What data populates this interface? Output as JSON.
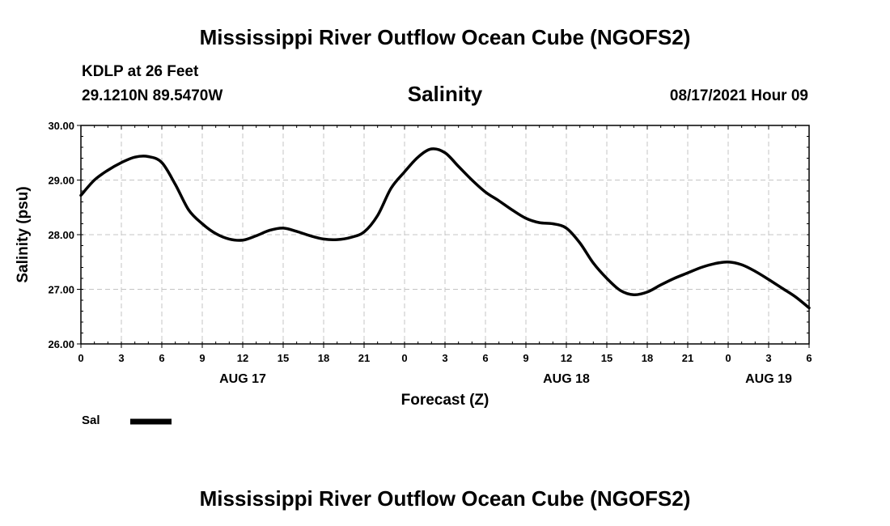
{
  "header": {
    "title": "Mississippi River Outflow Ocean Cube (NGOFS2)",
    "station": "KDLP at 26 Feet",
    "coordinates": "29.1210N  89.5470W",
    "date": "08/17/2021 Hour 09"
  },
  "footer": {
    "title": "Mississippi River Outflow Ocean Cube (NGOFS2)"
  },
  "legend": {
    "label": "Sal",
    "color": "#000000"
  },
  "chart_data": {
    "type": "line",
    "title": "Salinity",
    "xlabel": "Forecast (Z)",
    "ylabel": "Salinity (psu)",
    "xlim": [
      0,
      54
    ],
    "ylim": [
      26.0,
      30.0
    ],
    "grid": true,
    "x_unit": "forecast hours from AUG 17 00Z",
    "yticks": [
      "26.00",
      "27.00",
      "28.00",
      "29.00",
      "30.00"
    ],
    "xticks": [
      {
        "x": 0,
        "label": "0"
      },
      {
        "x": 3,
        "label": "3"
      },
      {
        "x": 6,
        "label": "6"
      },
      {
        "x": 9,
        "label": "9"
      },
      {
        "x": 12,
        "label": "12"
      },
      {
        "x": 15,
        "label": "15"
      },
      {
        "x": 18,
        "label": "18"
      },
      {
        "x": 21,
        "label": "21"
      },
      {
        "x": 24,
        "label": "0"
      },
      {
        "x": 27,
        "label": "3"
      },
      {
        "x": 30,
        "label": "6"
      },
      {
        "x": 33,
        "label": "9"
      },
      {
        "x": 36,
        "label": "12"
      },
      {
        "x": 39,
        "label": "15"
      },
      {
        "x": 42,
        "label": "18"
      },
      {
        "x": 45,
        "label": "21"
      },
      {
        "x": 48,
        "label": "0"
      },
      {
        "x": 51,
        "label": "3"
      },
      {
        "x": 54,
        "label": "6"
      }
    ],
    "day_labels": [
      {
        "x": 12,
        "label": "AUG 17"
      },
      {
        "x": 36,
        "label": "AUG 18"
      },
      {
        "x": 51,
        "label": "AUG 19"
      }
    ],
    "series": [
      {
        "name": "Sal",
        "x": [
          0,
          1,
          2,
          3,
          4,
          5,
          6,
          7,
          8,
          9,
          10,
          11,
          12,
          13,
          14,
          15,
          16,
          17,
          18,
          19,
          20,
          21,
          22,
          23,
          24,
          25,
          26,
          27,
          28,
          29,
          30,
          31,
          32,
          33,
          34,
          35,
          36,
          37,
          38,
          39,
          40,
          41,
          42,
          43,
          44,
          45,
          46,
          47,
          48,
          49,
          50,
          51,
          52,
          53,
          54
        ],
        "values": [
          28.72,
          29.0,
          29.18,
          29.32,
          29.42,
          29.43,
          29.32,
          28.92,
          28.45,
          28.2,
          28.02,
          27.92,
          27.9,
          27.98,
          28.08,
          28.12,
          28.06,
          27.98,
          27.92,
          27.91,
          27.95,
          28.05,
          28.35,
          28.85,
          29.15,
          29.42,
          29.57,
          29.5,
          29.25,
          29.0,
          28.78,
          28.62,
          28.45,
          28.3,
          28.22,
          28.2,
          28.12,
          27.85,
          27.48,
          27.2,
          26.98,
          26.9,
          26.95,
          27.08,
          27.2,
          27.3,
          27.4,
          27.47,
          27.5,
          27.45,
          27.33,
          27.18,
          27.02,
          26.86,
          26.66
        ]
      }
    ]
  }
}
